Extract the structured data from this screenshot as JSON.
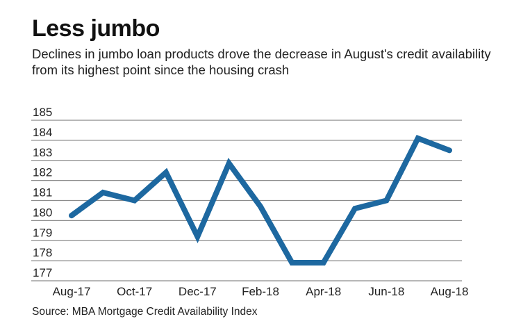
{
  "chart_data": {
    "type": "line",
    "title": "Less jumbo",
    "subtitle": "Declines in jumbo loan products drove the decrease in August's credit availability from its highest point since the housing crash",
    "source": "Source: MBA Mortgage Credit Availability Index",
    "x": [
      "Aug-17",
      "Sep-17",
      "Oct-17",
      "Nov-17",
      "Dec-17",
      "Jan-18",
      "Feb-18",
      "Mar-18",
      "Apr-18",
      "May-18",
      "Jun-18",
      "Jul-18",
      "Aug-18"
    ],
    "x_tick_labels": [
      "Aug-17",
      "Oct-17",
      "Dec-17",
      "Feb-18",
      "Apr-18",
      "Jun-18",
      "Aug-18"
    ],
    "values": [
      180.25,
      181.4,
      181.0,
      182.4,
      179.2,
      182.85,
      180.7,
      177.9,
      177.9,
      180.6,
      181.0,
      184.1,
      183.5
    ],
    "y_ticks": [
      177,
      178,
      179,
      180,
      181,
      182,
      183,
      184,
      185
    ],
    "ylim": [
      177,
      185
    ],
    "grid": true,
    "line_color": "#1d68a0",
    "grid_color": "#8c8c8c",
    "xlabel": "",
    "ylabel": ""
  }
}
